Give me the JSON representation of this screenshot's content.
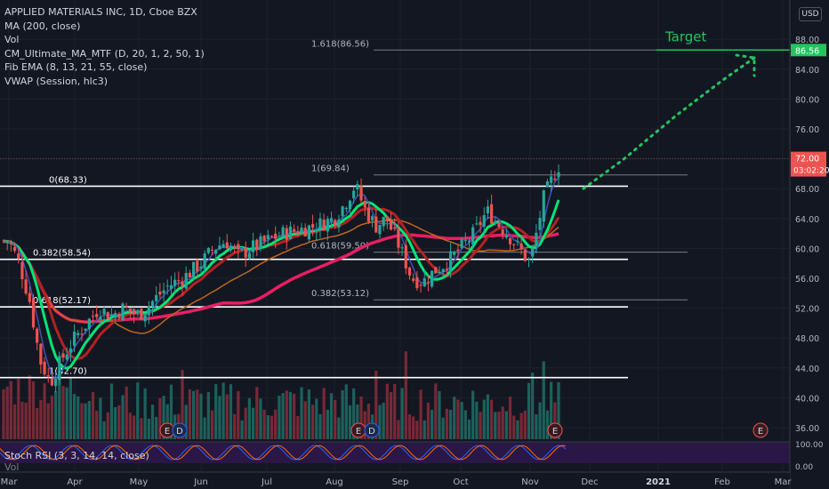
{
  "header": {
    "symbol_line": "APPLIED MATERIALS INC, 1D, Cboe BZX",
    "indicators": [
      "MA (200, close)",
      "Vol",
      "CM_Ultimate_MA_MTF (D, 20, 1, 2, 50, 1)",
      "Fib EMA (8, 13, 21, 55, close)",
      "VWAP (Session, hlc3)"
    ],
    "currency": "USD"
  },
  "lower_panel": {
    "label": "Stoch RSI (3, 3, 14, 14, close)",
    "label2": "Vol",
    "ticks": [
      "100.00",
      "0.00"
    ]
  },
  "chart_data": {
    "type": "candlestick",
    "title": "APPLIED MATERIALS INC, 1D, Cboe BZX",
    "x_ticks": [
      "Mar",
      "Apr",
      "May",
      "Jun",
      "Jul",
      "Aug",
      "Sep",
      "Oct",
      "Nov",
      "Dec",
      "2021",
      "Feb",
      "Mar"
    ],
    "y_ticks": [
      36,
      40,
      44,
      48,
      52,
      56,
      60,
      64,
      68,
      72,
      76,
      80,
      84,
      88
    ],
    "y_tick_labels": [
      "36.00",
      "40.00",
      "44.00",
      "48.00",
      "52.00",
      "56.00",
      "60.00",
      "64.00",
      "68.00",
      "72.00",
      "76.00",
      "80.00",
      "84.00",
      "88.00"
    ],
    "ylim": [
      34,
      92
    ],
    "last_price": {
      "value": 72.0,
      "label": "72.00",
      "countdown": "03:02:20"
    },
    "target": {
      "label": "Target",
      "price": 86.56,
      "price_label": "86.56"
    },
    "close_path": [
      [
        "Mar",
        61
      ],
      [
        "Mar",
        58
      ],
      [
        "Mar",
        53
      ],
      [
        "Mar",
        45
      ],
      [
        "Mar",
        42
      ],
      [
        "Mar",
        45
      ],
      [
        "Apr",
        48
      ],
      [
        "Apr",
        50
      ],
      [
        "Apr",
        52
      ],
      [
        "Apr",
        51
      ],
      [
        "Apr",
        52
      ],
      [
        "May",
        51
      ],
      [
        "May",
        53
      ],
      [
        "May",
        55
      ],
      [
        "May",
        56
      ],
      [
        "Jun",
        58
      ],
      [
        "Jun",
        60
      ],
      [
        "Jun",
        61
      ],
      [
        "Jun",
        59
      ],
      [
        "Jun",
        60
      ],
      [
        "Jul",
        61
      ],
      [
        "Jul",
        62
      ],
      [
        "Jul",
        62.5
      ],
      [
        "Jul",
        63
      ],
      [
        "Aug",
        64
      ],
      [
        "Aug",
        66
      ],
      [
        "Aug",
        68.5
      ],
      [
        "Aug",
        65
      ],
      [
        "Aug",
        63
      ],
      [
        "Aug",
        64
      ],
      [
        "Sep",
        60
      ],
      [
        "Sep",
        56
      ],
      [
        "Sep",
        55.5
      ],
      [
        "Sep",
        57
      ],
      [
        "Sep",
        58
      ],
      [
        "Oct",
        60
      ],
      [
        "Oct",
        62
      ],
      [
        "Oct",
        65
      ],
      [
        "Oct",
        63
      ],
      [
        "Oct",
        61
      ],
      [
        "Nov",
        58
      ],
      [
        "Nov",
        67
      ],
      [
        "Nov",
        71
      ],
      [
        "Nov",
        72
      ]
    ],
    "fibs": [
      {
        "label": "0(68.33)",
        "price": 68.33,
        "from": "Mar",
        "to": "Nov"
      },
      {
        "label": "0.382(58.54)",
        "price": 58.54,
        "from": "Mar",
        "to": "Nov"
      },
      {
        "label": "0.618(52.17)",
        "price": 52.17,
        "from": "Mar",
        "to": "Nov"
      },
      {
        "label": "1(42.70)",
        "price": 42.7,
        "from": "Mar",
        "to": "Nov"
      },
      {
        "label": "1(69.84)",
        "price": 69.84,
        "from": "Aug",
        "to": "Dec"
      },
      {
        "label": "0.618(59.50)",
        "price": 59.5,
        "from": "Aug",
        "to": "Dec"
      },
      {
        "label": "0.382(53.12)",
        "price": 53.12,
        "from": "Aug",
        "to": "Dec"
      },
      {
        "label": "1.618(86.56)",
        "price": 86.56,
        "from": "Aug",
        "to": "Dec"
      }
    ],
    "events": [
      "E",
      "D",
      "E",
      "D",
      "E",
      "E"
    ]
  }
}
